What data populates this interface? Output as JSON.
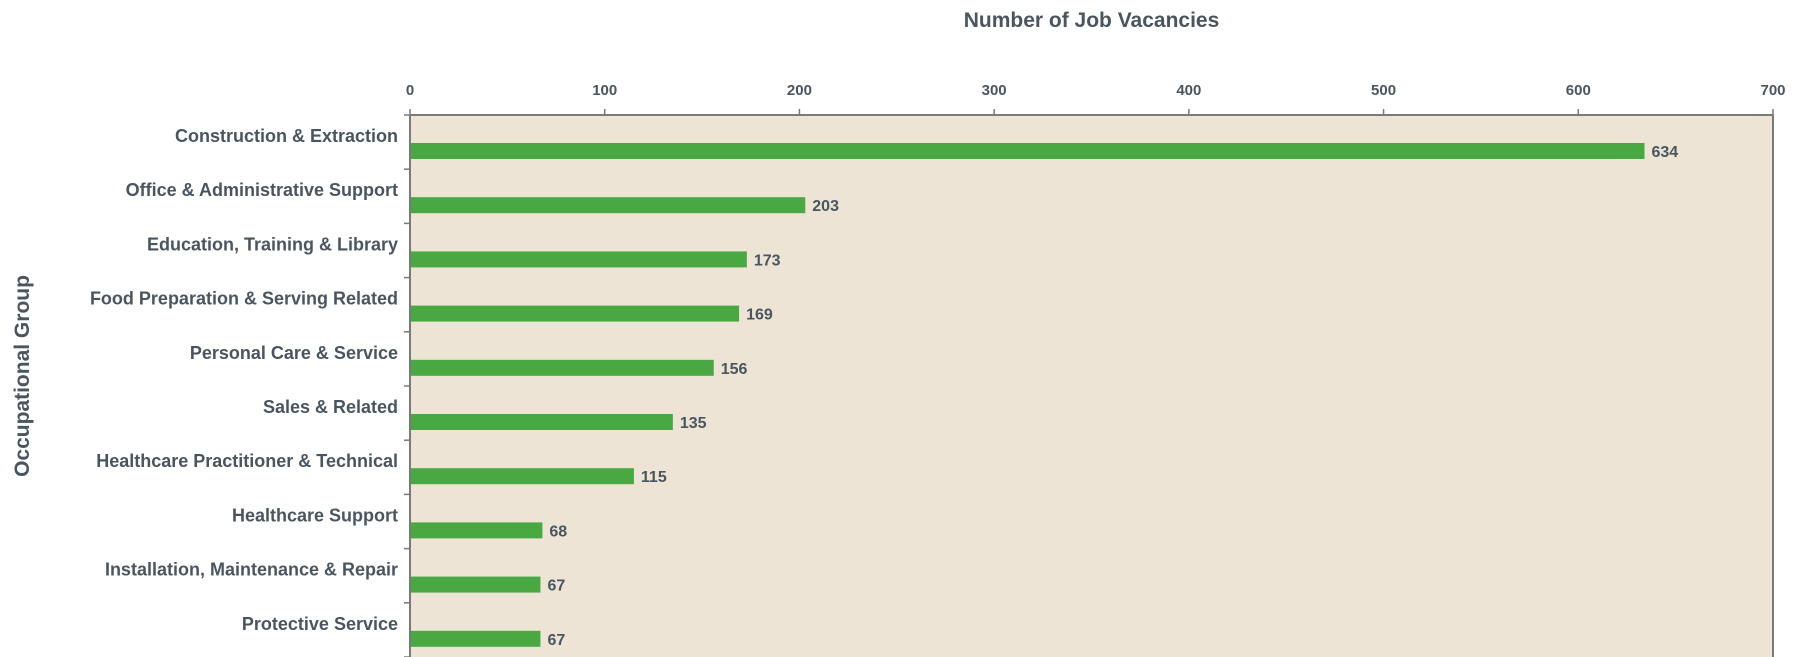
{
  "chart_data": {
    "type": "bar",
    "orientation": "horizontal",
    "title": "Number of Job Vacancies",
    "xlabel": "Number of Job Vacancies",
    "ylabel": "Occupational Group",
    "xlim": [
      0,
      700
    ],
    "x_ticks": [
      0,
      100,
      200,
      300,
      400,
      500,
      600,
      700
    ],
    "x_axis_position": "top",
    "grid": false,
    "categories": [
      "Construction & Extraction",
      "Office & Administrative Support",
      "Education, Training & Library",
      "Food Preparation & Serving Related",
      "Personal Care & Service",
      "Sales & Related",
      "Healthcare Practitioner & Technical",
      "Healthcare Support",
      "Installation, Maintenance & Repair",
      "Protective Service"
    ],
    "values": [
      634,
      203,
      173,
      169,
      156,
      135,
      115,
      68,
      67,
      67
    ],
    "data_labels": [
      "634",
      "203",
      "173",
      "169",
      "156",
      "135",
      "115",
      "68",
      "67",
      "67"
    ],
    "tick_labels": [
      "0",
      "100",
      "200",
      "300",
      "400",
      "500",
      "600",
      "700"
    ]
  },
  "colors": {
    "bar": "#4aa843",
    "plot_background": "#ede4d5",
    "axis": "#7a7a7a",
    "text": "#4a5560"
  }
}
